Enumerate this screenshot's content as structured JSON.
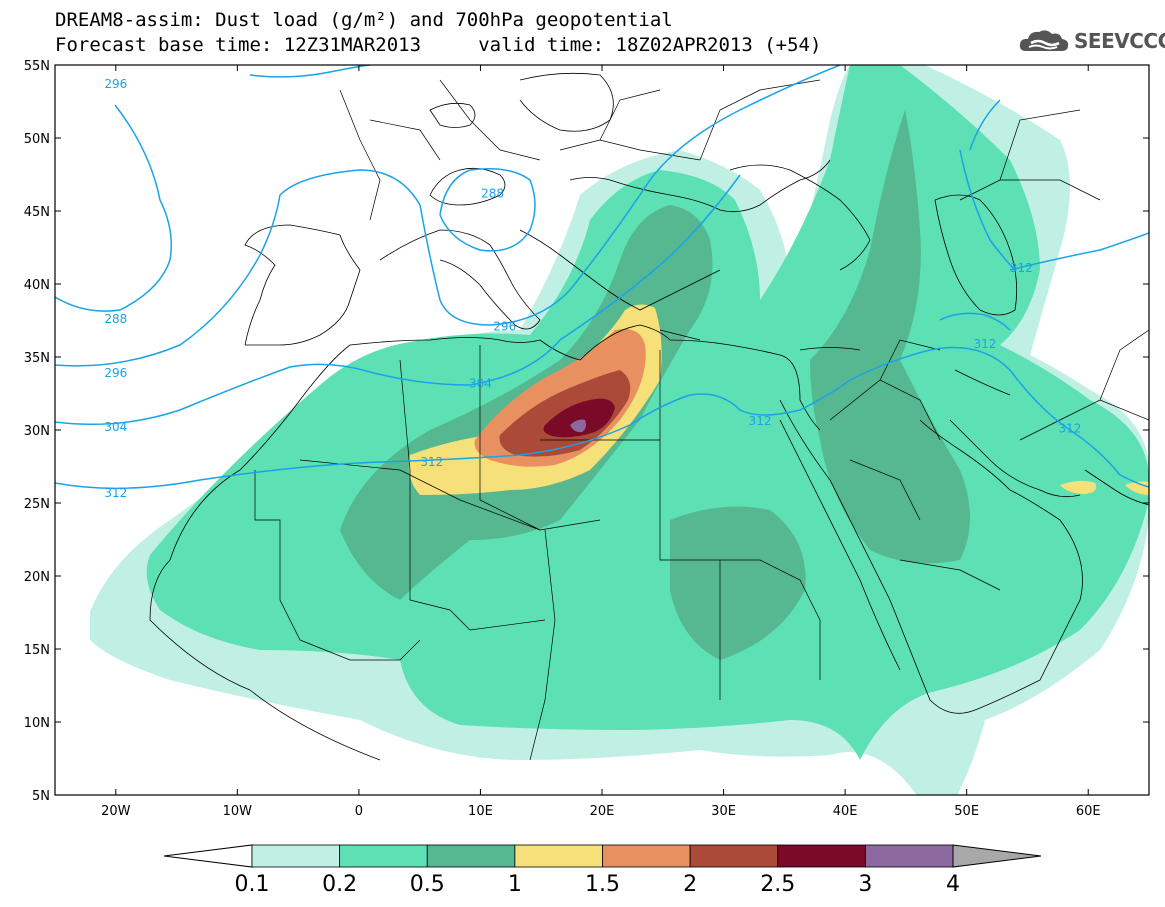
{
  "title": {
    "line1": "DREAM8-assim: Dust load (g/m²) and 700hPa geopotential",
    "line2": "Forecast base time: 12Z31MAR2013     valid time: 18Z02APR2013 (+54)"
  },
  "logo": {
    "text": "SEEVCCC",
    "icon": "cloud-icon"
  },
  "axes": {
    "lat_labels": [
      "55N",
      "50N",
      "45N",
      "40N",
      "35N",
      "30N",
      "25N",
      "20N",
      "15N",
      "10N",
      "5N"
    ],
    "lon_labels": [
      "20W",
      "10W",
      "0",
      "10E",
      "20E",
      "30E",
      "40E",
      "50E",
      "60E"
    ],
    "lat_range": [
      5,
      55
    ],
    "lon_range": [
      -25,
      65
    ]
  },
  "contours": {
    "color": "#1aa3e8",
    "labels": [
      {
        "text": "296",
        "lon": -20,
        "lat": 53.7
      },
      {
        "text": "288",
        "lon": 11,
        "lat": 46.2
      },
      {
        "text": "288",
        "lon": -20,
        "lat": 37.6
      },
      {
        "text": "296",
        "lon": -20,
        "lat": 33.9
      },
      {
        "text": "296",
        "lon": 12,
        "lat": 37.1
      },
      {
        "text": "304",
        "lon": -20,
        "lat": 30.2
      },
      {
        "text": "304",
        "lon": 10,
        "lat": 33.2
      },
      {
        "text": "312",
        "lon": -20,
        "lat": 25.7
      },
      {
        "text": "312",
        "lon": 6,
        "lat": 27.8
      },
      {
        "text": "312",
        "lon": 33,
        "lat": 30.6
      },
      {
        "text": "312",
        "lon": 54.5,
        "lat": 41.1
      },
      {
        "text": "312",
        "lon": 51.5,
        "lat": 35.9
      },
      {
        "text": "312",
        "lon": 58.5,
        "lat": 30.1
      }
    ]
  },
  "colorbar": {
    "labels": [
      "0.1",
      "0.2",
      "0.5",
      "1",
      "1.5",
      "2",
      "2.5",
      "3",
      "4"
    ],
    "colors": [
      "#c0f0e4",
      "#5ce0b4",
      "#55b890",
      "#f5e07a",
      "#e89060",
      "#ac4a3a",
      "#7a0a28",
      "#8c6aa0"
    ],
    "under_color": "#ffffff",
    "over_color": "#a8a8a8"
  },
  "field_colors": {
    "c01": "#c0f0e4",
    "c02": "#5ce0b4",
    "c05": "#55b890",
    "c1": "#f5e07a",
    "c15": "#e89060",
    "c2": "#ac4a3a",
    "c25": "#7a0a28",
    "c3": "#8c6aa0"
  }
}
